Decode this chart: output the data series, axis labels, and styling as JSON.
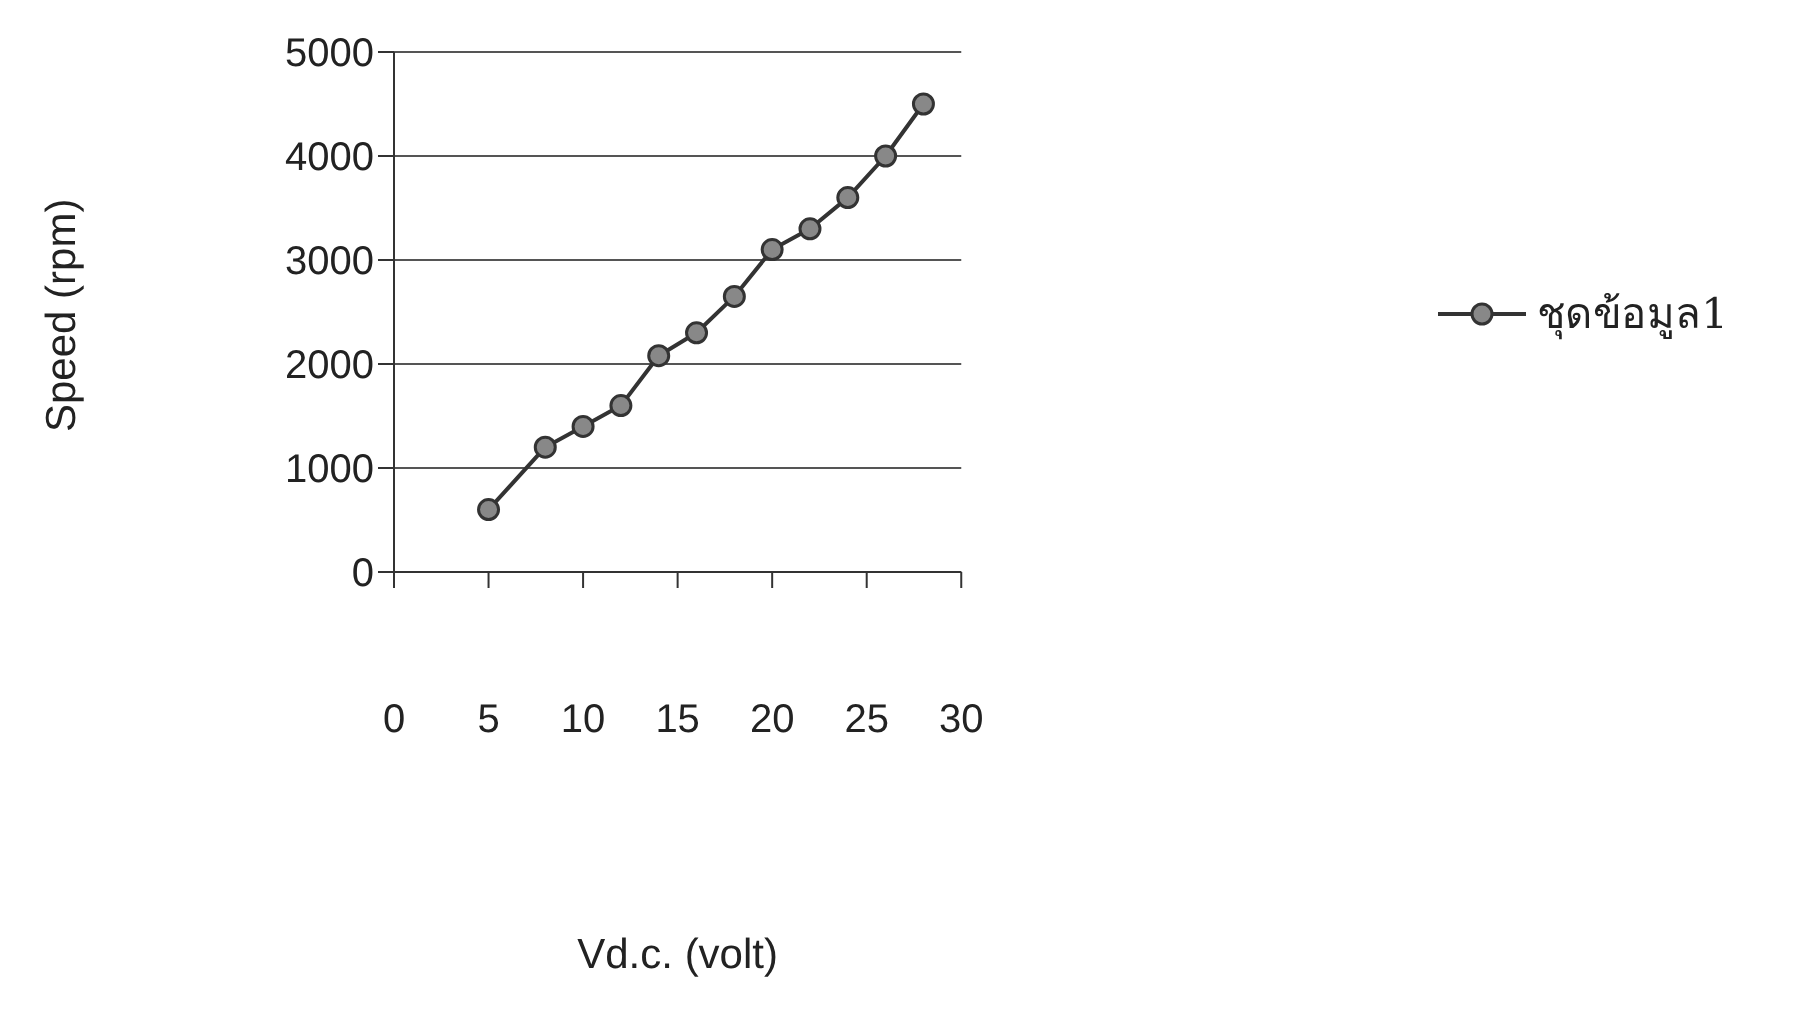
{
  "chart_data": {
    "type": "line",
    "xlabel": "Vd.c. (volt)",
    "ylabel": "Speed (rpm)",
    "x": [
      5,
      8,
      10,
      12,
      14,
      16,
      18,
      20,
      22,
      24,
      26,
      28
    ],
    "series": [
      {
        "name": "ชุดข้อมูล1",
        "color": "#333333",
        "values": [
          600,
          1200,
          1400,
          1600,
          2080,
          2300,
          2650,
          3100,
          3300,
          3600,
          4000,
          4500
        ]
      }
    ],
    "xlim": [
      0,
      30
    ],
    "xticks": [
      0,
      5,
      10,
      15,
      20,
      25,
      30
    ],
    "ylim": [
      0,
      5000
    ],
    "yticks": [
      0,
      1000,
      2000,
      3000,
      4000,
      5000
    ],
    "grid": "y",
    "legend": "right",
    "marker": "circle",
    "line_style": "solid"
  }
}
